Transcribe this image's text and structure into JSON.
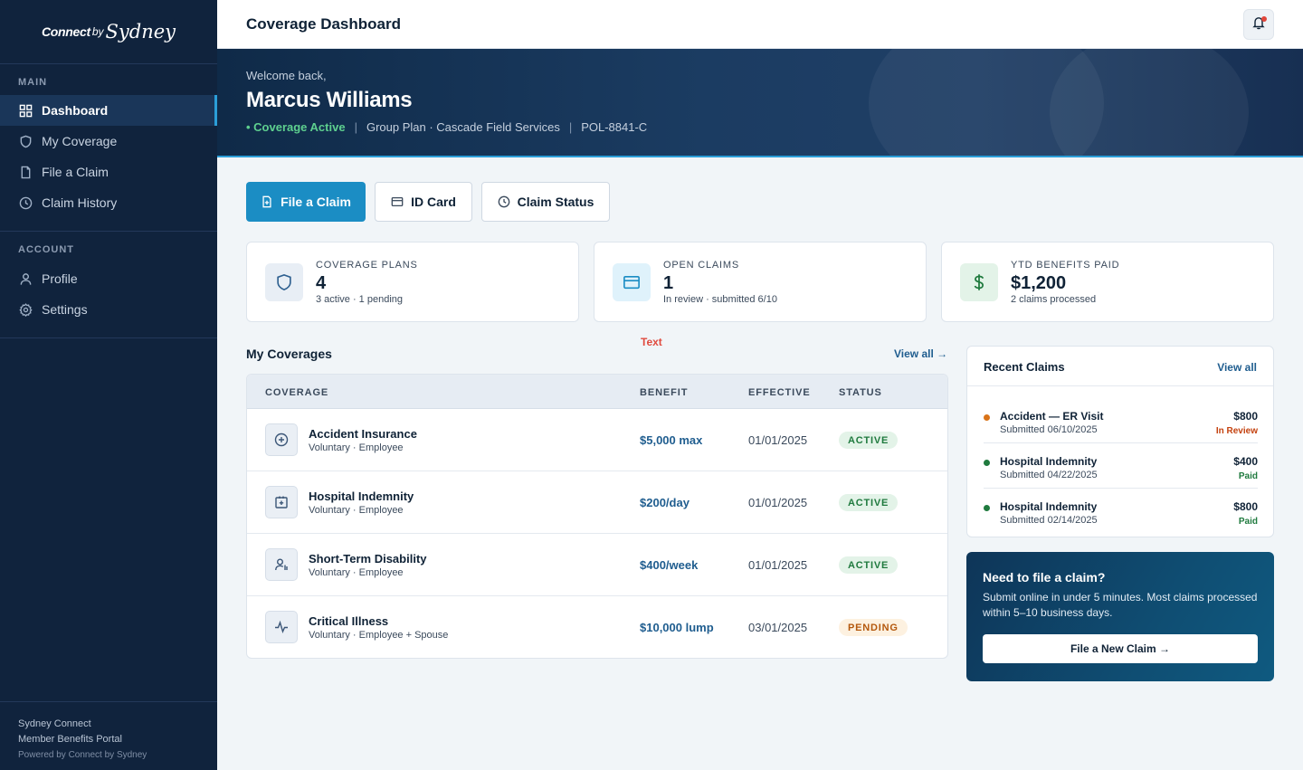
{
  "brand": {
    "part1": "Connect",
    "part2": "by",
    "part3": "Sydney"
  },
  "sidebar": {
    "main_label": "MAIN",
    "main_items": [
      {
        "label": "Dashboard",
        "icon": "grid-icon",
        "active": true
      },
      {
        "label": "My Coverage",
        "icon": "shield-icon"
      },
      {
        "label": "File a Claim",
        "icon": "document-icon"
      },
      {
        "label": "Claim History",
        "icon": "clock-icon"
      }
    ],
    "account_label": "ACCOUNT",
    "account_items": [
      {
        "label": "Profile",
        "icon": "user-icon"
      },
      {
        "label": "Settings",
        "icon": "gear-icon"
      }
    ],
    "footer": {
      "line1": "Sydney Connect",
      "line2": "Member Benefits Portal",
      "line3": "Powered by Connect by Sydney"
    }
  },
  "header": {
    "title": "Coverage Dashboard"
  },
  "hero": {
    "welcome": "Welcome back,",
    "name": "Marcus Williams",
    "status": "• Coverage Active",
    "plan": "Group Plan · Cascade Field Services",
    "policy": "POL-8841-C",
    "sep": "|"
  },
  "actions": {
    "file_claim": "File a Claim",
    "id_card": "ID Card",
    "claim_status": "Claim Status"
  },
  "stats": [
    {
      "label": "COVERAGE PLANS",
      "value": "4",
      "sub": "3 active · 1 pending"
    },
    {
      "label": "OPEN CLAIMS",
      "value": "1",
      "sub": "In review · submitted 6/10"
    },
    {
      "label": "YTD BENEFITS PAID",
      "value": "$1,200",
      "sub": "2 claims processed"
    }
  ],
  "coverages": {
    "title": "My Coverages",
    "view_all": "View all →",
    "stray_text": "Text",
    "columns": [
      "COVERAGE",
      "BENEFIT",
      "EFFECTIVE",
      "STATUS"
    ],
    "rows": [
      {
        "name": "Accident Insurance",
        "sub": "Voluntary · Employee",
        "benefit": "$5,000 max",
        "effective": "01/01/2025",
        "status": "ACTIVE",
        "icon": "plus-circle-icon"
      },
      {
        "name": "Hospital Indemnity",
        "sub": "Voluntary · Employee",
        "benefit": "$200/day",
        "effective": "01/01/2025",
        "status": "ACTIVE",
        "icon": "hospital-icon"
      },
      {
        "name": "Short-Term Disability",
        "sub": "Voluntary · Employee",
        "benefit": "$400/week",
        "effective": "01/01/2025",
        "status": "ACTIVE",
        "icon": "person-icon"
      },
      {
        "name": "Critical Illness",
        "sub": "Voluntary · Employee + Spouse",
        "benefit": "$10,000 lump",
        "effective": "03/01/2025",
        "status": "PENDING",
        "icon": "pulse-icon"
      }
    ]
  },
  "recent_claims": {
    "title": "Recent Claims",
    "view_all": "View all",
    "items": [
      {
        "name": "Accident — ER Visit",
        "date": "Submitted 06/10/2025",
        "amount": "$800",
        "status": "In Review",
        "color": "#d97319"
      },
      {
        "name": "Hospital Indemnity",
        "date": "Submitted 04/22/2025",
        "amount": "$400",
        "status": "Paid",
        "color": "#1f7a3e"
      },
      {
        "name": "Hospital Indemnity",
        "date": "Submitted 02/14/2025",
        "amount": "$800",
        "status": "Paid",
        "color": "#1f7a3e"
      }
    ]
  },
  "cta": {
    "heading": "Need to file a claim?",
    "text": "Submit online in under 5 minutes. Most claims processed within 5–10 business days.",
    "button": "File a New Claim →"
  },
  "colors": {
    "accent": "#1b8dc4",
    "sidebar_bg": "#10233d",
    "active_green": "#1f7a3e",
    "pending_orange": "#b4580d"
  }
}
